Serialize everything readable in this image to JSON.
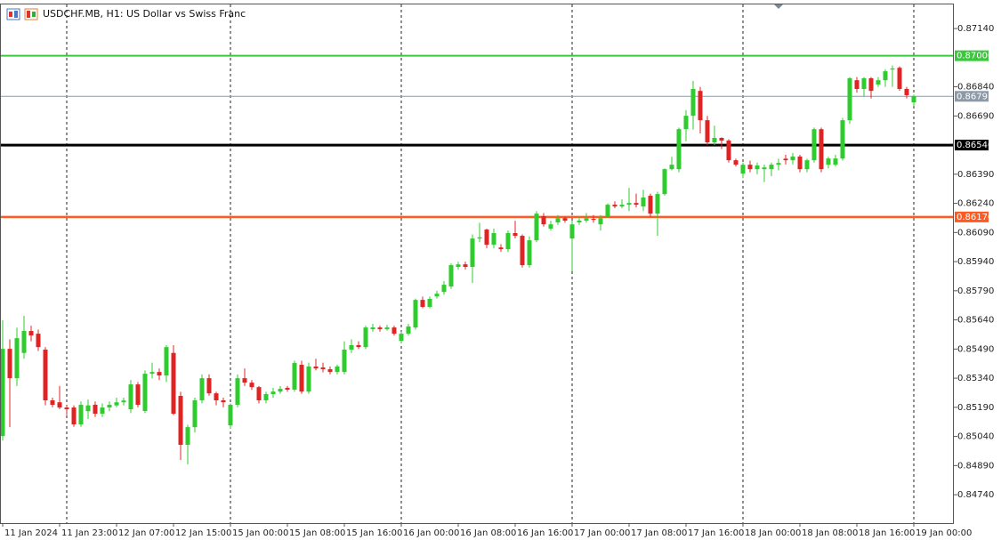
{
  "chart_data": {
    "type": "candlestick",
    "title": "USDCHF.MB, H1:  US Dollar vs Swiss Franc",
    "categories": [
      "11 Jan 2024",
      null,
      null,
      null,
      null,
      null,
      null,
      null,
      "11 Jan 23:00",
      null,
      null,
      null,
      null,
      null,
      null,
      null,
      "12 Jan 07:00",
      null,
      null,
      null,
      null,
      null,
      null,
      null,
      "12 Jan 15:00",
      null,
      null,
      null,
      null,
      null,
      null,
      null,
      "15 Jan 00:00",
      null,
      null,
      null,
      null,
      null,
      null,
      null,
      "15 Jan 08:00",
      null,
      null,
      null,
      null,
      null,
      null,
      null,
      "15 Jan 16:00",
      null,
      null,
      null,
      null,
      null,
      null,
      null,
      "16 Jan 00:00",
      null,
      null,
      null,
      null,
      null,
      null,
      null,
      "16 Jan 08:00",
      null,
      null,
      null,
      null,
      null,
      null,
      null,
      "16 Jan 16:00",
      null,
      null,
      null,
      null,
      null,
      null,
      null,
      "17 Jan 00:00",
      null,
      null,
      null,
      null,
      null,
      null,
      null,
      "17 Jan 08:00",
      null,
      null,
      null,
      null,
      null,
      null,
      null,
      "17 Jan 16:00",
      null,
      null,
      null,
      null,
      null,
      null,
      null,
      "18 Jan 00:00",
      null,
      null,
      null,
      null,
      null,
      null,
      null,
      "18 Jan 08:00",
      null,
      null,
      null,
      null,
      null,
      null,
      null,
      "18 Jan 16:00",
      null,
      null,
      null,
      null,
      null,
      null,
      null,
      "19 Jan 00:00"
    ],
    "open": [
      0.85042,
      0.85491,
      0.8534,
      0.8547,
      0.85583,
      0.85569,
      0.85487,
      0.85226,
      0.85216,
      0.85189,
      0.85189,
      0.85102,
      0.8517,
      0.85203,
      0.85157,
      0.85189,
      0.852,
      0.85216,
      0.8518,
      0.85308,
      0.85171,
      0.85363,
      0.85372,
      0.85354,
      0.8547,
      0.85249,
      0.84997,
      0.85088,
      0.85226,
      0.8534,
      0.85262,
      0.85226,
      0.85097,
      0.85203,
      0.8534,
      0.85317,
      0.85294,
      0.85226,
      0.85258,
      0.85271,
      0.8529,
      0.85281,
      0.85409,
      0.85271,
      0.854,
      0.85395,
      0.85386,
      0.85372,
      0.85372,
      0.85487,
      0.8551,
      0.855,
      0.85592,
      0.85601,
      0.85592,
      0.85601,
      0.85532,
      0.85569,
      0.85601,
      0.85743,
      0.85707,
      0.85761,
      0.85784,
      0.85812,
      0.85913,
      0.85926,
      0.85913,
      0.86059,
      0.86105,
      0.86027,
      0.86013,
      0.86004,
      0.86087,
      0.86073,
      0.85922,
      0.8605,
      0.86174,
      0.8611,
      0.86142,
      0.86164,
      0.86059,
      0.86142,
      0.86151,
      0.8616,
      0.86132,
      0.86174,
      0.86233,
      0.86224,
      0.86233,
      0.86242,
      0.86224,
      0.86279,
      0.86187,
      0.86288,
      0.86416,
      0.86416,
      0.86622,
      0.86691,
      0.86819,
      0.86668,
      0.86554,
      0.86577,
      0.86563,
      0.86462,
      0.86393,
      0.86439,
      0.86416,
      0.86416,
      0.86416,
      0.86439,
      0.8647,
      0.86462,
      0.86481,
      0.86416,
      0.86462,
      0.86622,
      0.86439,
      0.86439,
      0.86471,
      0.86668,
      0.86874,
      0.86829,
      0.86884,
      0.86852,
      0.86874,
      0.86929,
      0.86938,
      0.86829,
      0.8676
    ],
    "high": [
      0.85638,
      0.8554,
      0.856,
      0.85661,
      0.8561,
      0.8559,
      0.855,
      0.8524,
      0.853,
      0.852,
      0.852,
      0.8522,
      0.8523,
      0.8522,
      0.8521,
      0.8522,
      0.8524,
      0.8524,
      0.8533,
      0.8532,
      0.8538,
      0.8542,
      0.8539,
      0.8551,
      0.8551,
      0.8527,
      0.851,
      0.8524,
      0.8536,
      0.8536,
      0.8527,
      0.8524,
      0.8521,
      0.8536,
      0.8539,
      0.8533,
      0.853,
      0.8527,
      0.8529,
      0.853,
      0.853,
      0.8543,
      0.8543,
      0.8542,
      0.8544,
      0.8542,
      0.854,
      0.8541,
      0.8553,
      0.8554,
      0.8553,
      0.8561,
      0.8562,
      0.8561,
      0.85615,
      0.8561,
      0.8558,
      0.8562,
      0.8575,
      0.8576,
      0.8576,
      0.8579,
      0.8584,
      0.8593,
      0.8594,
      0.8594,
      0.8608,
      0.8614,
      0.8611,
      0.8611,
      0.8603,
      0.861,
      0.8615,
      0.8608,
      0.8607,
      0.862,
      0.8619,
      0.8615,
      0.8618,
      0.8617,
      0.8615,
      0.8617,
      0.8619,
      0.8618,
      0.8618,
      0.8624,
      0.8625,
      0.8626,
      0.8632,
      0.8629,
      0.8631,
      0.8629,
      0.863,
      0.8642,
      0.8648,
      0.8663,
      0.8672,
      0.8687,
      0.8684,
      0.8669,
      0.8664,
      0.8658,
      0.8657,
      0.8647,
      0.8645,
      0.8646,
      0.8645,
      0.8644,
      0.8645,
      0.8647,
      0.8649,
      0.865,
      0.8649,
      0.8647,
      0.8663,
      0.8663,
      0.8648,
      0.8649,
      0.8668,
      0.8689,
      0.8689,
      0.8689,
      0.8689,
      0.8689,
      0.8693,
      0.8695,
      0.86945,
      0.8684,
      0.868
    ],
    "low": [
      0.85019,
      0.85088,
      0.853,
      0.8544,
      0.8553,
      0.8548,
      0.852,
      0.8519,
      0.8518,
      0.8515,
      0.8509,
      0.8509,
      0.8513,
      0.8514,
      0.8514,
      0.8517,
      0.8519,
      0.852,
      0.8516,
      0.8519,
      0.8516,
      0.8534,
      0.8533,
      0.8532,
      0.8515,
      0.84919,
      0.84896,
      0.8506,
      0.8521,
      0.8525,
      0.852,
      0.8519,
      0.8508,
      0.8519,
      0.853,
      0.8528,
      0.8521,
      0.8521,
      0.8524,
      0.8526,
      0.8527,
      0.8527,
      0.8526,
      0.8526,
      0.8538,
      0.8537,
      0.8536,
      0.8536,
      0.8536,
      0.8547,
      0.8549,
      0.8549,
      0.8558,
      0.8558,
      0.85585,
      0.8556,
      0.8552,
      0.8556,
      0.8559,
      0.857,
      0.857,
      0.8575,
      0.8577,
      0.858,
      0.859,
      0.859,
      0.8583,
      0.8604,
      0.8601,
      0.8601,
      0.8599,
      0.8599,
      0.8606,
      0.8591,
      0.8591,
      0.8604,
      0.8612,
      0.861,
      0.8613,
      0.8614,
      0.8589,
      0.8613,
      0.8614,
      0.8614,
      0.861,
      0.86165,
      0.86215,
      0.86215,
      0.862,
      0.8622,
      0.862,
      0.8617,
      0.86073,
      0.8628,
      0.8641,
      0.864,
      0.8656,
      0.8662,
      0.866,
      0.8654,
      0.8654,
      0.8652,
      0.8645,
      0.8643,
      0.8637,
      0.864,
      0.8639,
      0.8635,
      0.8638,
      0.8641,
      0.8644,
      0.8644,
      0.864,
      0.864,
      0.8645,
      0.864,
      0.8642,
      0.8643,
      0.8646,
      0.8665,
      0.8681,
      0.8679,
      0.8678,
      0.8684,
      0.8684,
      0.8684,
      0.8682,
      0.8678,
      0.8674
    ],
    "close": [
      0.85491,
      0.8534,
      0.85546,
      0.85583,
      0.8556,
      0.855,
      0.85226,
      0.85203,
      0.85189,
      0.8518,
      0.85102,
      0.85203,
      0.852,
      0.85157,
      0.85189,
      0.85203,
      0.85216,
      0.85225,
      0.85308,
      0.85203,
      0.85363,
      0.85372,
      0.85354,
      0.855,
      0.85157,
      0.84997,
      0.85088,
      0.85226,
      0.8534,
      0.85262,
      0.85226,
      0.85216,
      0.85203,
      0.8534,
      0.85317,
      0.85294,
      0.85226,
      0.85258,
      0.85271,
      0.85285,
      0.85281,
      0.85418,
      0.85271,
      0.854,
      0.8539,
      0.85386,
      0.85372,
      0.854,
      0.85487,
      0.8551,
      0.855,
      0.85601,
      0.85601,
      0.85592,
      0.85601,
      0.85569,
      0.85569,
      0.85606,
      0.85743,
      0.85707,
      0.85748,
      0.85775,
      0.85821,
      0.85922,
      0.85926,
      0.85913,
      0.86059,
      0.86065,
      0.86027,
      0.86087,
      0.86004,
      0.86087,
      0.86073,
      0.85922,
      0.8605,
      0.86187,
      0.86132,
      0.86132,
      0.86164,
      0.86151,
      0.86132,
      0.86151,
      0.86164,
      0.86155,
      0.86164,
      0.86233,
      0.86224,
      0.86233,
      0.86242,
      0.86233,
      0.8627,
      0.86187,
      0.86288,
      0.86416,
      0.86439,
      0.86622,
      0.86691,
      0.86829,
      0.86668,
      0.86554,
      0.86577,
      0.86563,
      0.86462,
      0.86439,
      0.86439,
      0.86416,
      0.86435,
      0.86425,
      0.86439,
      0.86448,
      0.86462,
      0.86481,
      0.86416,
      0.86462,
      0.86622,
      0.86416,
      0.86471,
      0.86471,
      0.86668,
      0.86884,
      0.86829,
      0.86884,
      0.86819,
      0.86874,
      0.8692,
      0.86934,
      0.86829,
      0.86797,
      0.86791
    ],
    "up_color": "#2ecc2e",
    "down_color": "#e02424",
    "ylim": [
      0.84594,
      0.87264
    ],
    "yticks": [
      {
        "value": 0.8714,
        "label": "0.87140"
      },
      {
        "value": 0.8684,
        "label": "0.86840"
      },
      {
        "value": 0.8669,
        "label": "0.86690"
      },
      {
        "value": 0.8639,
        "label": "0.86390"
      },
      {
        "value": 0.8624,
        "label": "0.86240"
      },
      {
        "value": 0.8609,
        "label": "0.86090"
      },
      {
        "value": 0.8594,
        "label": "0.85940"
      },
      {
        "value": 0.8579,
        "label": "0.85790"
      },
      {
        "value": 0.8564,
        "label": "0.85640"
      },
      {
        "value": 0.8549,
        "label": "0.85490"
      },
      {
        "value": 0.8534,
        "label": "0.85340"
      },
      {
        "value": 0.8519,
        "label": "0.85190"
      },
      {
        "value": 0.8504,
        "label": "0.85040"
      },
      {
        "value": 0.8489,
        "label": "0.84890"
      },
      {
        "value": 0.8474,
        "label": "0.84740"
      }
    ],
    "levels": [
      {
        "value": 0.87,
        "label": "0.87000",
        "color": "#3cc83c",
        "width": 2
      },
      {
        "value": 0.86791,
        "label": "0.86791",
        "color": "#8c9aa8",
        "width": 1
      },
      {
        "value": 0.8654,
        "label": "0.86540",
        "color": "#000000",
        "width": 3
      },
      {
        "value": 0.8617,
        "label": "0.86170",
        "color": "#ff5a1f",
        "width": 2.5
      }
    ]
  }
}
